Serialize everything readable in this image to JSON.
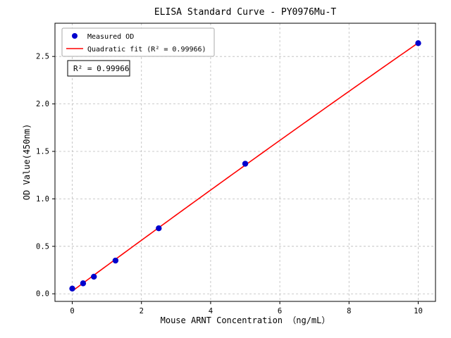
{
  "chart_data": {
    "type": "scatter",
    "title": "ELISA Standard Curve - PY0976Mu-T",
    "xlabel": "Mouse ARNT Concentration （ng/mL）",
    "ylabel": "OD Value(450nm)",
    "xlim": [
      -0.5,
      10.5
    ],
    "ylim": [
      -0.08,
      2.85
    ],
    "xticks": [
      0,
      2,
      4,
      6,
      8,
      10
    ],
    "xtick_labels": [
      "0",
      "2",
      "4",
      "6",
      "8",
      "10"
    ],
    "yticks": [
      0.0,
      0.5,
      1.0,
      1.5,
      2.0,
      2.5
    ],
    "ytick_labels": [
      "0.0",
      "0.5",
      "1.0",
      "1.5",
      "2.0",
      "2.5"
    ],
    "grid": true,
    "grid_style": "dashed",
    "legend_position": "upper left",
    "annotation_text": "R² = 0.99966",
    "r_squared": 0.99966,
    "series": [
      {
        "name": "Measured OD",
        "type": "scatter",
        "color": "#0000cd",
        "x": [
          0,
          0.313,
          0.625,
          1.25,
          2.5,
          5,
          10
        ],
        "y": [
          0.055,
          0.11,
          0.18,
          0.35,
          0.69,
          1.37,
          2.64
        ]
      },
      {
        "name": "Quadratic fit (R² = 0.99966)",
        "type": "line",
        "fit": "quadratic",
        "color": "#ff0000",
        "x_range": [
          0,
          10
        ]
      }
    ],
    "colors": {
      "scatter": "#0000cd",
      "fit_line": "#ff0000",
      "grid": "#bbbbbb",
      "frame": "#000000",
      "legend_border": "#aaaaaa",
      "annotation_border": "#000000",
      "background": "#ffffff"
    }
  }
}
